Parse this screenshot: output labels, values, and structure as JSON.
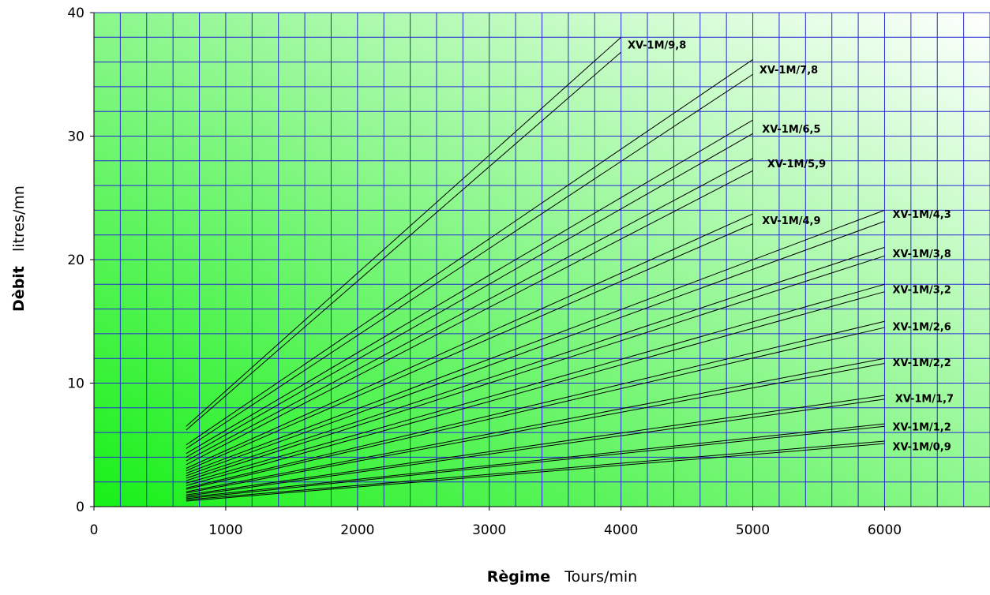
{
  "chart_data": {
    "type": "line",
    "xlabel_bold": "Règime",
    "xlabel_unit": "Tours/min",
    "ylabel_bold": "Dèbit",
    "ylabel_unit": "litres/mn",
    "xlim": [
      0,
      6800
    ],
    "ylim": [
      0,
      40
    ],
    "x_ticks": [
      "0",
      "1000",
      "2000",
      "3000",
      "4000",
      "5000",
      "6000"
    ],
    "y_ticks": [
      "0",
      "10",
      "20",
      "30",
      "40"
    ],
    "grid": true,
    "background": "green-gradient",
    "colors": {
      "grid": "#2b2bd6",
      "line": "#000000",
      "bg_dark": "#18f018",
      "bg_light": "#ffffff"
    },
    "series": [
      {
        "name": "XV-1M/9,8",
        "lines": [
          {
            "x": [
              700,
              4000
            ],
            "y": [
              6.5,
              38.0
            ]
          },
          {
            "x": [
              700,
              4000
            ],
            "y": [
              6.2,
              36.8
            ]
          }
        ]
      },
      {
        "name": "XV-1M/7,8",
        "lines": [
          {
            "x": [
              700,
              5000
            ],
            "y": [
              5.0,
              36.2
            ]
          },
          {
            "x": [
              700,
              5000
            ],
            "y": [
              4.7,
              35.0
            ]
          }
        ]
      },
      {
        "name": "XV-1M/6,5",
        "lines": [
          {
            "x": [
              700,
              5000
            ],
            "y": [
              4.3,
              31.3
            ]
          },
          {
            "x": [
              700,
              5000
            ],
            "y": [
              4.0,
              30.2
            ]
          }
        ]
      },
      {
        "name": "XV-1M/5,9",
        "lines": [
          {
            "x": [
              700,
              5000
            ],
            "y": [
              3.7,
              28.2
            ]
          },
          {
            "x": [
              700,
              5000
            ],
            "y": [
              3.4,
              27.2
            ]
          }
        ]
      },
      {
        "name": "XV-1M/4,9",
        "lines": [
          {
            "x": [
              700,
              5000
            ],
            "y": [
              3.1,
              23.7
            ]
          },
          {
            "x": [
              700,
              5000
            ],
            "y": [
              2.9,
              22.9
            ]
          }
        ]
      },
      {
        "name": "XV-1M/4,3",
        "lines": [
          {
            "x": [
              700,
              6000
            ],
            "y": [
              2.7,
              24.0
            ]
          },
          {
            "x": [
              700,
              6000
            ],
            "y": [
              2.5,
              23.1
            ]
          }
        ]
      },
      {
        "name": "XV-1M/3,8",
        "lines": [
          {
            "x": [
              700,
              6000
            ],
            "y": [
              2.3,
              21.0
            ]
          },
          {
            "x": [
              700,
              6000
            ],
            "y": [
              2.1,
              20.3
            ]
          }
        ]
      },
      {
        "name": "XV-1M/3,2",
        "lines": [
          {
            "x": [
              700,
              6000
            ],
            "y": [
              1.9,
              18.0
            ]
          },
          {
            "x": [
              700,
              6000
            ],
            "y": [
              1.7,
              17.4
            ]
          }
        ]
      },
      {
        "name": "XV-1M/2,6",
        "lines": [
          {
            "x": [
              700,
              6000
            ],
            "y": [
              1.5,
              15.0
            ]
          },
          {
            "x": [
              700,
              6000
            ],
            "y": [
              1.4,
              14.5
            ]
          }
        ]
      },
      {
        "name": "XV-1M/2,2",
        "lines": [
          {
            "x": [
              700,
              6000
            ],
            "y": [
              1.2,
              12.0
            ]
          },
          {
            "x": [
              700,
              6000
            ],
            "y": [
              1.1,
              11.6
            ]
          }
        ]
      },
      {
        "name": "XV-1M/1,7",
        "lines": [
          {
            "x": [
              700,
              6000
            ],
            "y": [
              0.95,
              9.0
            ]
          },
          {
            "x": [
              700,
              6000
            ],
            "y": [
              0.85,
              8.7
            ]
          }
        ]
      },
      {
        "name": "XV-1M/1,2",
        "lines": [
          {
            "x": [
              700,
              6000
            ],
            "y": [
              0.75,
              6.7
            ]
          },
          {
            "x": [
              700,
              6000
            ],
            "y": [
              0.65,
              6.5
            ]
          }
        ]
      },
      {
        "name": "XV-1M/0,9",
        "lines": [
          {
            "x": [
              700,
              6000
            ],
            "y": [
              0.55,
              5.3
            ]
          },
          {
            "x": [
              700,
              6000
            ],
            "y": [
              0.45,
              5.1
            ]
          }
        ]
      }
    ],
    "label_positions": [
      {
        "x": 4050,
        "y": 37.4
      },
      {
        "x": 5050,
        "y": 35.4
      },
      {
        "x": 5070,
        "y": 30.6
      },
      {
        "x": 5110,
        "y": 27.8
      },
      {
        "x": 5070,
        "y": 23.2
      },
      {
        "x": 6060,
        "y": 23.7
      },
      {
        "x": 6060,
        "y": 20.5
      },
      {
        "x": 6060,
        "y": 17.6
      },
      {
        "x": 6060,
        "y": 14.6
      },
      {
        "x": 6060,
        "y": 11.7
      },
      {
        "x": 6080,
        "y": 8.8
      },
      {
        "x": 6060,
        "y": 6.5
      },
      {
        "x": 6060,
        "y": 4.9
      }
    ]
  }
}
